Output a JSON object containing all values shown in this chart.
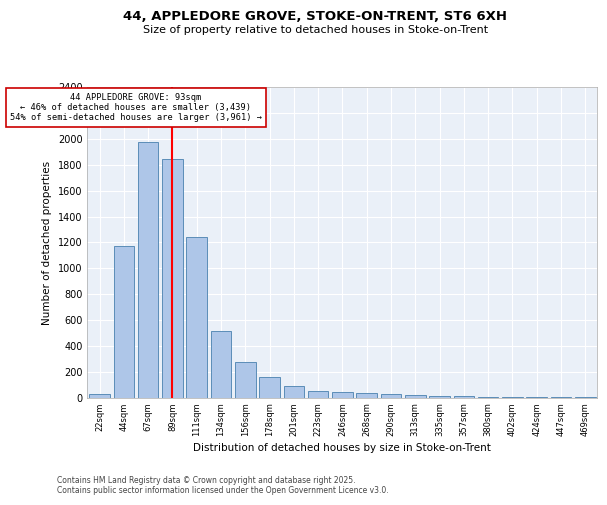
{
  "title_line1": "44, APPLEDORE GROVE, STOKE-ON-TRENT, ST6 6XH",
  "title_line2": "Size of property relative to detached houses in Stoke-on-Trent",
  "xlabel": "Distribution of detached houses by size in Stoke-on-Trent",
  "ylabel": "Number of detached properties",
  "categories": [
    "22sqm",
    "44sqm",
    "67sqm",
    "89sqm",
    "111sqm",
    "134sqm",
    "156sqm",
    "178sqm",
    "201sqm",
    "223sqm",
    "246sqm",
    "268sqm",
    "290sqm",
    "313sqm",
    "335sqm",
    "357sqm",
    "380sqm",
    "402sqm",
    "424sqm",
    "447sqm",
    "469sqm"
  ],
  "values": [
    30,
    1175,
    1975,
    1850,
    1240,
    515,
    275,
    160,
    90,
    50,
    45,
    35,
    25,
    20,
    15,
    10,
    5,
    5,
    5,
    5,
    5
  ],
  "bar_color": "#aec6e8",
  "bar_edge_color": "#5b8db8",
  "red_line_x": 3.0,
  "annotation_line1": "44 APPLEDORE GROVE: 93sqm",
  "annotation_line2": "← 46% of detached houses are smaller (3,439)",
  "annotation_line3": "54% of semi-detached houses are larger (3,961) →",
  "annotation_box_color": "#ffffff",
  "annotation_box_edge": "#cc0000",
  "ylim": [
    0,
    2400
  ],
  "yticks": [
    0,
    200,
    400,
    600,
    800,
    1000,
    1200,
    1400,
    1600,
    1800,
    2000,
    2200,
    2400
  ],
  "bg_color": "#eaf0f8",
  "grid_color": "#ffffff",
  "footer_line1": "Contains HM Land Registry data © Crown copyright and database right 2025.",
  "footer_line2": "Contains public sector information licensed under the Open Government Licence v3.0."
}
